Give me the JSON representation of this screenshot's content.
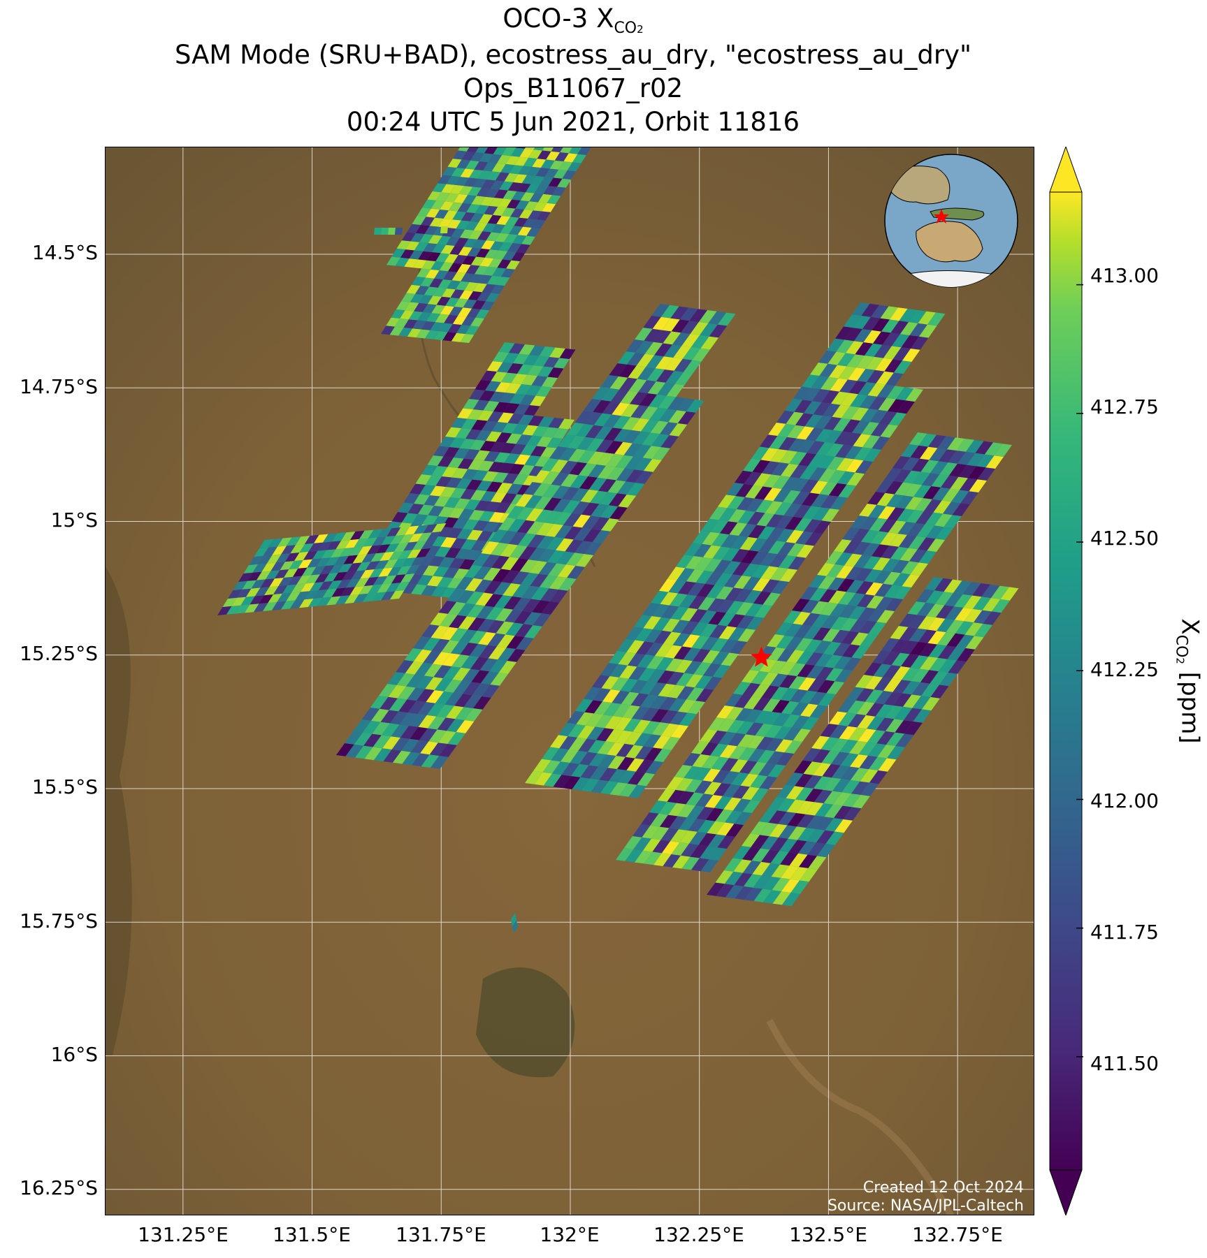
{
  "title": {
    "line1_prefix": "OCO-3 X",
    "line1_sub": "CO",
    "line1_subsub": "2",
    "line2": "SAM Mode (SRU+BAD), ecostress_au_dry, \"ecostress_au_dry\"",
    "line3": "Ops_B11067_r02",
    "line4": "00:24 UTC 5 Jun 2021, Orbit 11816"
  },
  "axes": {
    "lat_ticks": [
      "14.5°S",
      "14.75°S",
      "15°S",
      "15.25°S",
      "15.5°S",
      "15.75°S",
      "16°S",
      "16.25°S"
    ],
    "lat_values": [
      -14.5,
      -14.75,
      -15.0,
      -15.25,
      -15.5,
      -15.75,
      -16.0,
      -16.25
    ],
    "lon_ticks": [
      "131.25°E",
      "131.5°E",
      "131.75°E",
      "132°E",
      "132.25°E",
      "132.5°E",
      "132.75°E"
    ],
    "lon_values": [
      131.25,
      131.5,
      131.75,
      132.0,
      132.25,
      132.5,
      132.75
    ],
    "lon_range": [
      131.1,
      132.9
    ],
    "lat_range": [
      -16.3,
      -14.3
    ],
    "grid": true
  },
  "colorbar": {
    "label_prefix": "X",
    "label_sub": "CO",
    "label_subsub": "2",
    "label_suffix": " [ppm]",
    "ticks": [
      "411.50",
      "411.75",
      "412.00",
      "412.25",
      "412.50",
      "412.75",
      "413.00"
    ],
    "tick_values": [
      411.5,
      411.75,
      412.0,
      412.25,
      412.5,
      412.75,
      413.0
    ],
    "range": [
      411.28,
      413.18
    ],
    "colormap": "viridis",
    "extend": "both"
  },
  "target": {
    "name": "ecostress_au_dry",
    "lon": 132.37,
    "lat": -15.255,
    "color": "#ff0000"
  },
  "credits": {
    "created": "Created 12 Oct 2024",
    "source": "Source: NASA/JPL-Caltech"
  },
  "inset": {
    "type": "globe",
    "center": "Australia"
  },
  "colors": {
    "land": "#7b6238",
    "ocean": "#7aa6c8",
    "grid": "#ffffff",
    "marker": "#ff0000"
  }
}
